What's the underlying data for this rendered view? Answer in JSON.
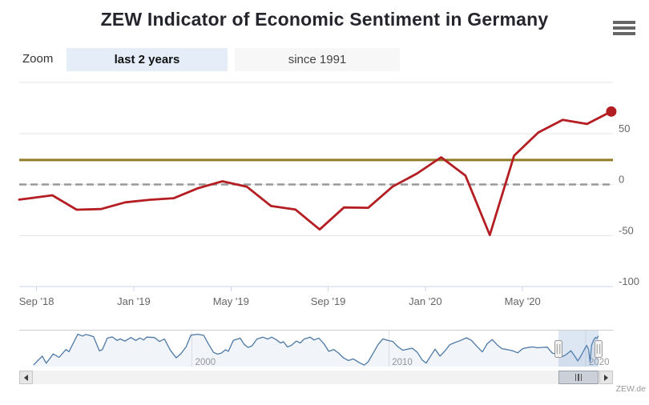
{
  "header": {
    "title": "ZEW Indicator of Economic Sentiment in Germany",
    "menu_icon": "hamburger-icon"
  },
  "range_selector": {
    "label": "Zoom",
    "buttons": [
      {
        "label": "last 2 years",
        "selected": true
      },
      {
        "label": "since 1991",
        "selected": false
      }
    ]
  },
  "credits": {
    "text": "ZEW.de"
  },
  "colors": {
    "series": "#b41e23",
    "average_line": "#8e7c26",
    "zero_line": "#999999",
    "grid": "#e6e6e6",
    "axis_line": "#ccd6eb",
    "axis_label": "#666666",
    "navigator_line": "#4d79a6",
    "navigator_fill": "rgba(77,121,166,0.08)",
    "navigator_outline": "#cccccc",
    "navigator_label": "#999999",
    "selection_mask": "rgba(102,144,205,0.22)",
    "handle_fill": "#f2f2f2",
    "handle_stroke": "#999999"
  },
  "chart_data": {
    "type": "line",
    "title": "ZEW Indicator of Economic Sentiment in Germany",
    "main": {
      "categories": [
        "Aug '18",
        "Sep '18",
        "Oct '18",
        "Nov '18",
        "Dec '18",
        "Jan '19",
        "Feb '19",
        "Mar '19",
        "Apr '19",
        "May '19",
        "Jun '19",
        "Jul '19",
        "Aug '19",
        "Sep '19",
        "Oct '19",
        "Nov '19",
        "Dec '19",
        "Jan '20",
        "Feb '20",
        "Mar '20",
        "Apr '20",
        "May '20",
        "Jun '20",
        "Jul '20",
        "Aug '20"
      ],
      "values": [
        -13.7,
        -10.6,
        -24.7,
        -24.1,
        -17.5,
        -15,
        -13.4,
        -3.6,
        3.1,
        -2.1,
        -21.1,
        -24.5,
        -44.1,
        -22.5,
        -22.8,
        -2.1,
        10.7,
        26.7,
        8.7,
        -49.5,
        28.2,
        51,
        63.4,
        59.3,
        71.5
      ],
      "x_ticks": [
        {
          "label": "Sep '18",
          "month_index": 1
        },
        {
          "label": "Jan '19",
          "month_index": 5
        },
        {
          "label": "May '19",
          "month_index": 9
        },
        {
          "label": "Sep '19",
          "month_index": 13
        },
        {
          "label": "Jan '20",
          "month_index": 17
        },
        {
          "label": "May '20",
          "month_index": 21
        }
      ],
      "y_ticks": [
        {
          "label": "50",
          "value": 50
        },
        {
          "label": "0",
          "value": 0
        },
        {
          "label": "-50",
          "value": -50
        },
        {
          "label": "-100",
          "value": -100
        }
      ],
      "ylim": [
        -100,
        100
      ],
      "grid_values": [
        100,
        50,
        0,
        -50
      ],
      "plot_lines": [
        {
          "name": "long-term-average-line",
          "value": 24,
          "dashed": false
        },
        {
          "name": "zero-line",
          "value": 0,
          "dashed": true
        }
      ],
      "legend": "off",
      "last_point_marker": true
    },
    "navigator": {
      "x_ticks": [
        {
          "label": "2000",
          "year": 2000
        },
        {
          "label": "2010",
          "year": 2010
        },
        {
          "label": "2020",
          "year": 2020
        }
      ],
      "selected_range_years": [
        2018.62,
        2020.65
      ],
      "series": [
        [
          1991.95,
          -63
        ],
        [
          1992.2,
          -40
        ],
        [
          1992.4,
          -22
        ],
        [
          1992.6,
          -55
        ],
        [
          1992.95,
          -12
        ],
        [
          1993.25,
          -28
        ],
        [
          1993.6,
          8
        ],
        [
          1993.75,
          -2
        ],
        [
          1994.2,
          78
        ],
        [
          1994.45,
          70
        ],
        [
          1994.6,
          77
        ],
        [
          1994.8,
          73
        ],
        [
          1995,
          67
        ],
        [
          1995.3,
          2
        ],
        [
          1995.45,
          8
        ],
        [
          1995.7,
          60
        ],
        [
          1995.95,
          66
        ],
        [
          1996.2,
          50
        ],
        [
          1996.35,
          57
        ],
        [
          1996.6,
          47
        ],
        [
          1996.9,
          63
        ],
        [
          1997.15,
          50
        ],
        [
          1997.35,
          61
        ],
        [
          1997.55,
          52
        ],
        [
          1997.7,
          65
        ],
        [
          1998.1,
          63
        ],
        [
          1998.35,
          45
        ],
        [
          1998.6,
          56
        ],
        [
          1998.9,
          6
        ],
        [
          1999.2,
          -30
        ],
        [
          1999.45,
          -10
        ],
        [
          1999.7,
          20
        ],
        [
          1999.95,
          74
        ],
        [
          2000.3,
          78
        ],
        [
          2000.6,
          73
        ],
        [
          2000.85,
          32
        ],
        [
          2001.1,
          -5
        ],
        [
          2001.3,
          -13
        ],
        [
          2001.5,
          -8
        ],
        [
          2001.7,
          7
        ],
        [
          2001.85,
          0
        ],
        [
          2002.1,
          50
        ],
        [
          2002.45,
          60
        ],
        [
          2002.65,
          32
        ],
        [
          2002.85,
          18
        ],
        [
          2003.05,
          25
        ],
        [
          2003.3,
          56
        ],
        [
          2003.6,
          65
        ],
        [
          2003.85,
          56
        ],
        [
          2004.05,
          65
        ],
        [
          2004.3,
          52
        ],
        [
          2004.5,
          38
        ],
        [
          2004.65,
          44
        ],
        [
          2004.85,
          20
        ],
        [
          2005.05,
          27
        ],
        [
          2005.3,
          47
        ],
        [
          2005.5,
          38
        ],
        [
          2005.7,
          56
        ],
        [
          2006,
          65
        ],
        [
          2006.2,
          52
        ],
        [
          2006.45,
          60
        ],
        [
          2006.7,
          35
        ],
        [
          2006.95,
          0
        ],
        [
          2007.2,
          8
        ],
        [
          2007.45,
          -8
        ],
        [
          2007.7,
          -30
        ],
        [
          2007.95,
          -42
        ],
        [
          2008.2,
          -35
        ],
        [
          2008.5,
          -52
        ],
        [
          2008.75,
          -63
        ],
        [
          2008.95,
          -48
        ],
        [
          2009.2,
          -10
        ],
        [
          2009.45,
          30
        ],
        [
          2009.7,
          57
        ],
        [
          2009.95,
          50
        ],
        [
          2010.2,
          45
        ],
        [
          2010.45,
          22
        ],
        [
          2010.7,
          5
        ],
        [
          2010.95,
          10
        ],
        [
          2011.2,
          14
        ],
        [
          2011.45,
          -5
        ],
        [
          2011.7,
          -40
        ],
        [
          2011.9,
          -54
        ],
        [
          2012.1,
          -25
        ],
        [
          2012.35,
          10
        ],
        [
          2012.6,
          -22
        ],
        [
          2012.85,
          2
        ],
        [
          2013.1,
          30
        ],
        [
          2013.35,
          40
        ],
        [
          2013.6,
          48
        ],
        [
          2013.95,
          62
        ],
        [
          2014.2,
          50
        ],
        [
          2014.45,
          25
        ],
        [
          2014.75,
          -3
        ],
        [
          2015,
          35
        ],
        [
          2015.25,
          54
        ],
        [
          2015.5,
          30
        ],
        [
          2015.75,
          12
        ],
        [
          2016,
          8
        ],
        [
          2016.3,
          2
        ],
        [
          2016.55,
          -7
        ],
        [
          2016.8,
          12
        ],
        [
          2017.05,
          17
        ],
        [
          2017.3,
          20
        ],
        [
          2017.55,
          16
        ],
        [
          2017.8,
          18
        ],
        [
          2018.05,
          19
        ],
        [
          2018.3,
          -8
        ],
        [
          2018.6,
          -13.7
        ],
        [
          2018.8,
          -24.5
        ],
        [
          2019,
          -16
        ],
        [
          2019.25,
          3.1
        ],
        [
          2019.45,
          -22
        ],
        [
          2019.6,
          -44.1
        ],
        [
          2019.75,
          -22.6
        ],
        [
          2019.95,
          10.7
        ],
        [
          2020.05,
          26.7
        ],
        [
          2020.15,
          8.7
        ],
        [
          2020.22,
          -49.5
        ],
        [
          2020.3,
          28.2
        ],
        [
          2020.4,
          51
        ],
        [
          2020.5,
          63.4
        ],
        [
          2020.57,
          59.3
        ],
        [
          2020.65,
          71.5
        ]
      ]
    }
  }
}
